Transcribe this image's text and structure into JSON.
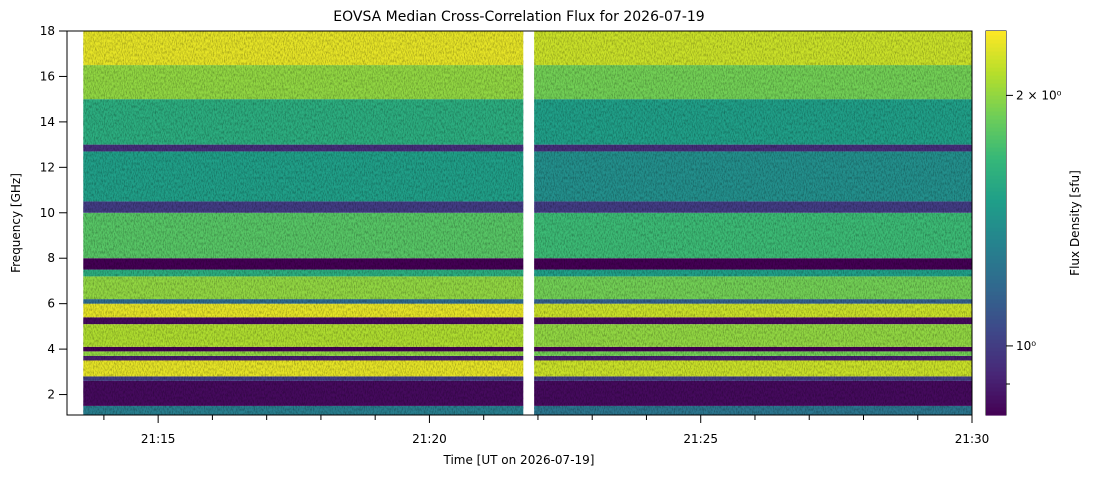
{
  "chart_data": {
    "type": "heatmap",
    "title": "EOVSA Median Cross-Correlation Flux for 2026-07-19",
    "xlabel": "Time [UT on 2026-07-19]",
    "ylabel": "Frequency [GHz]",
    "colorbar_label": "Flux Density [sfu]",
    "xlim": [
      13.32,
      30.0
    ],
    "xticks": [
      {
        "value": 15,
        "label": "21:15"
      },
      {
        "value": 20,
        "label": "21:20"
      },
      {
        "value": 25,
        "label": "21:25"
      },
      {
        "value": 30,
        "label": "21:30"
      }
    ],
    "xminorticks": [
      14,
      16,
      17,
      18,
      19,
      21,
      22,
      23,
      24,
      26,
      27,
      28,
      29
    ],
    "ylim": [
      1.1,
      18.0
    ],
    "yticks": [
      2,
      4,
      6,
      8,
      10,
      12,
      14,
      16,
      18
    ],
    "clim": [
      0.826,
      2.39
    ],
    "clog": true,
    "cticks": [
      {
        "value": 1,
        "label": "10⁰"
      },
      {
        "value": 2,
        "label": "2 × 10⁰"
      }
    ],
    "cminorticks": [
      0.9
    ],
    "colormap": [
      "#440154",
      "#482878",
      "#3e4989",
      "#31688e",
      "#26828e",
      "#1f9e89",
      "#35b779",
      "#6ece58",
      "#b5de2b",
      "#fde725"
    ],
    "x_segments": [
      [
        13.62,
        21.73
      ],
      [
        21.93,
        30.0
      ]
    ],
    "y_bins": [
      1.1,
      1.5,
      2.6,
      2.8,
      3.5,
      3.7,
      3.9,
      4.1,
      5.1,
      5.4,
      6.0,
      6.2,
      7.2,
      7.5,
      8.0,
      10.0,
      10.5,
      12.7,
      13.0,
      15.0,
      16.5,
      18.0
    ],
    "z": [
      [
        1.3,
        1.25
      ],
      [
        0.85,
        0.85
      ],
      [
        1.0,
        1.0
      ],
      [
        2.3,
        2.2
      ],
      [
        0.9,
        0.9
      ],
      [
        2.0,
        1.9
      ],
      [
        0.8,
        0.8
      ],
      [
        2.1,
        2.0
      ],
      [
        0.85,
        0.85
      ],
      [
        2.3,
        2.2
      ],
      [
        1.2,
        1.15
      ],
      [
        2.0,
        1.9
      ],
      [
        1.6,
        1.5
      ],
      [
        0.8,
        0.8
      ],
      [
        1.8,
        1.7
      ],
      [
        1.0,
        1.0
      ],
      [
        1.5,
        1.4
      ],
      [
        0.95,
        0.95
      ],
      [
        1.6,
        1.5
      ],
      [
        2.0,
        1.9
      ],
      [
        2.3,
        2.2
      ]
    ]
  }
}
